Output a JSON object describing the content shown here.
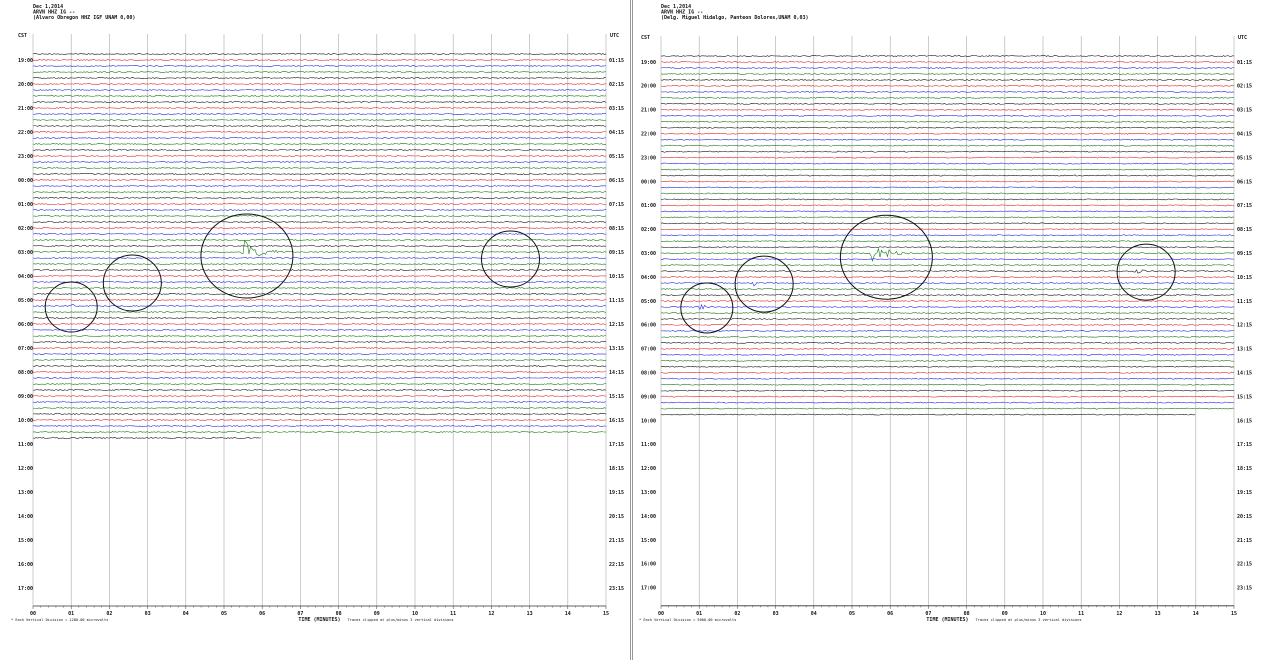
{
  "colors": {
    "trace": [
      "#1a1a1a",
      "#d83030",
      "#2b2be0",
      "#1c7a1c"
    ],
    "event": "#1c7a1c",
    "grid": "#aaaaaa",
    "circle": "#111111"
  },
  "chart_data": [
    {
      "type": "line",
      "header": [
        "Dec 1,2014",
        "ARVN HHZ IG --",
        "(Alvaro Obregon HHZ IGF UNAM 0,00)"
      ],
      "left_label": "CST",
      "right_label": "UTC",
      "cst_ticks": [
        "19:00",
        "20:00",
        "21:00",
        "22:00",
        "23:00",
        "00:00",
        "01:00",
        "02:00",
        "03:00",
        "04:00",
        "05:00",
        "06:00",
        "07:00",
        "08:00",
        "09:00",
        "10:00",
        "11:00",
        "12:00",
        "13:00",
        "14:00",
        "15:00",
        "16:00",
        "17:00"
      ],
      "utc_ticks": [
        "01:15",
        "02:15",
        "03:15",
        "04:15",
        "05:15",
        "06:15",
        "07:15",
        "08:15",
        "09:15",
        "10:15",
        "11:15",
        "12:15",
        "13:15",
        "14:15",
        "15:15",
        "16:15",
        "17:15",
        "18:15",
        "19:15",
        "20:15",
        "21:15",
        "22:15",
        "23:15"
      ],
      "x_ticks": [
        "00",
        "01",
        "02",
        "03",
        "04",
        "05",
        "06",
        "07",
        "08",
        "09",
        "10",
        "11",
        "12",
        "13",
        "14",
        "15"
      ],
      "x_label": "TIME (MINUTES)",
      "footnote_left": "Each Vertical Division = 1280.00 microvolts",
      "footnote_right": "Traces clipped at plus/minus 3 vertical divisions",
      "xlim": [
        0,
        15
      ],
      "traces_per_hour": 4,
      "filled_traces": 65,
      "last_trace_minutes": 6,
      "events": [
        {
          "trace": 42,
          "minute": 1.0,
          "amplitude": "small"
        },
        {
          "trace": 38,
          "minute": 2.6,
          "amplitude": "small"
        },
        {
          "trace": 33,
          "minute": 5.5,
          "amplitude": "large"
        },
        {
          "trace": 34,
          "minute": 12.5,
          "amplitude": "small"
        }
      ],
      "circled_minutes": [
        1.0,
        2.6,
        5.6,
        12.5
      ]
    },
    {
      "type": "line",
      "header": [
        "Dec 1,2014",
        "ARVN HHZ IG --",
        "(Delg. Miguel Hidalgo, Panteon Dolores,UNAM 0,03)"
      ],
      "left_label": "CST",
      "right_label": "UTC",
      "cst_ticks": [
        "19:00",
        "20:00",
        "21:00",
        "22:00",
        "23:00",
        "00:00",
        "01:00",
        "02:00",
        "03:00",
        "04:00",
        "05:00",
        "06:00",
        "07:00",
        "08:00",
        "09:00",
        "10:00",
        "11:00",
        "12:00",
        "13:00",
        "14:00",
        "15:00",
        "16:00",
        "17:00"
      ],
      "utc_ticks": [
        "01:15",
        "02:15",
        "03:15",
        "04:15",
        "05:15",
        "06:15",
        "07:15",
        "08:15",
        "09:15",
        "10:15",
        "11:15",
        "12:15",
        "13:15",
        "14:15",
        "15:15",
        "16:15",
        "17:15",
        "18:15",
        "19:15",
        "20:15",
        "21:15",
        "22:15",
        "23:15"
      ],
      "x_ticks": [
        "00",
        "01",
        "02",
        "03",
        "04",
        "05",
        "06",
        "07",
        "08",
        "09",
        "10",
        "11",
        "12",
        "13",
        "14",
        "15"
      ],
      "x_label": "TIME (MINUTES)",
      "footnote_left": "Each Vertical Division = 5000.00 microvolts",
      "footnote_right": "Traces clipped at plus/minus 3 vertical divisions",
      "xlim": [
        0,
        15
      ],
      "traces_per_hour": 4,
      "filled_traces": 61,
      "last_trace_minutes": 14,
      "events": [
        {
          "trace": 42,
          "minute": 1.0,
          "amplitude": "medium"
        },
        {
          "trace": 38,
          "minute": 2.4,
          "amplitude": "medium"
        },
        {
          "trace": 33,
          "minute": 5.5,
          "amplitude": "large"
        },
        {
          "trace": 36,
          "minute": 12.4,
          "amplitude": "medium"
        }
      ],
      "circled_minutes": [
        1.2,
        2.7,
        5.9,
        12.7
      ]
    }
  ]
}
